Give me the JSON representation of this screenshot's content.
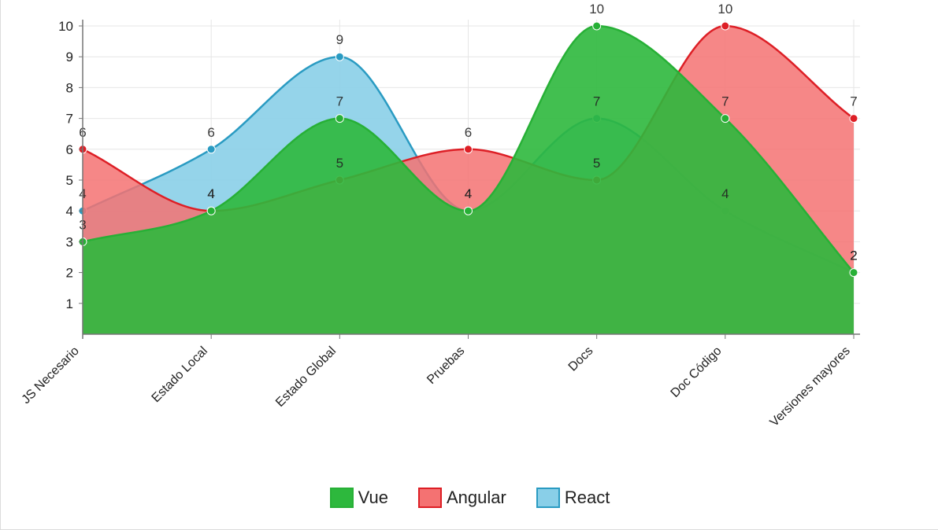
{
  "chart_data": {
    "type": "area",
    "categories": [
      "JS Necesario",
      "Estado Local",
      "Estado Global",
      "Pruebas",
      "Docs",
      "Doc Código",
      "Versiones mayores"
    ],
    "ylim": [
      0,
      10
    ],
    "yticks": [
      1,
      2,
      3,
      4,
      5,
      6,
      7,
      8,
      9,
      10
    ],
    "grid": true,
    "legend_position": "bottom-center",
    "series": [
      {
        "name": "Vue",
        "values": [
          3,
          4,
          7,
          4,
          10,
          7,
          2
        ],
        "fill": "#2db83d",
        "stroke": "#27b036",
        "fill_opacity": 0.9
      },
      {
        "name": "Angular",
        "values": [
          6,
          4,
          5,
          6,
          5,
          10,
          7
        ],
        "fill": "#f47272",
        "stroke": "#dd1f26",
        "fill_opacity": 0.85
      },
      {
        "name": "React",
        "values": [
          4,
          6,
          9,
          4,
          7,
          4,
          2
        ],
        "fill": "#89cfe8",
        "stroke": "#2a9bc2",
        "fill_opacity": 0.9
      }
    ],
    "data_labels": true
  }
}
